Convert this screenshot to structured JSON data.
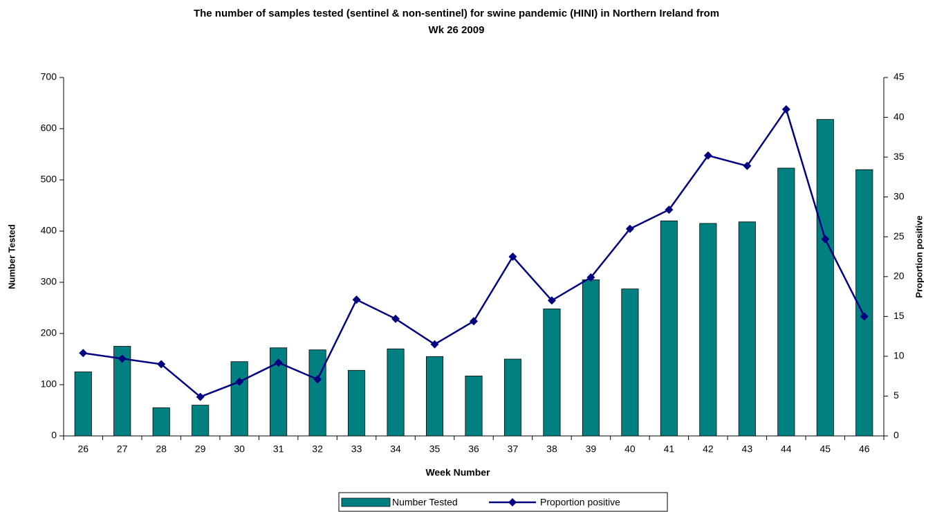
{
  "chart_data": {
    "type": "bar-line",
    "title": "The number of samples tested (sentinel & non-sentinel) for swine pandemic (HINI) in Northern Ireland from Wk 26 2009",
    "x_label": "Week Number",
    "y_label": "Number Tested",
    "y2_label": "Proportion positive",
    "categories": [
      "26",
      "27",
      "28",
      "29",
      "30",
      "31",
      "32",
      "33",
      "34",
      "35",
      "36",
      "37",
      "38",
      "39",
      "40",
      "41",
      "42",
      "43",
      "44",
      "45",
      "46"
    ],
    "series": [
      {
        "name": "Number Tested",
        "type": "bar",
        "color": "#008080",
        "values": [
          125,
          175,
          55,
          60,
          145,
          172,
          168,
          128,
          170,
          155,
          117,
          150,
          248,
          305,
          287,
          420,
          415,
          418,
          523,
          618,
          520
        ]
      },
      {
        "name": "Proportion positive",
        "type": "line",
        "axis": "y2",
        "color": "#000080",
        "values": [
          10.4,
          9.7,
          9.0,
          4.9,
          6.8,
          9.2,
          7.1,
          17.1,
          14.7,
          11.5,
          14.4,
          22.5,
          17.0,
          19.9,
          26.0,
          28.4,
          35.2,
          33.9,
          41.0,
          24.7,
          15.0
        ]
      }
    ],
    "ylim": [
      0,
      700
    ],
    "yticks": [
      0,
      100,
      200,
      300,
      400,
      500,
      600,
      700
    ],
    "y2lim": [
      0,
      45
    ],
    "y2ticks": [
      0,
      5,
      10,
      15,
      20,
      25,
      30,
      35,
      40,
      45
    ],
    "grid": false,
    "legend": "bottom"
  }
}
